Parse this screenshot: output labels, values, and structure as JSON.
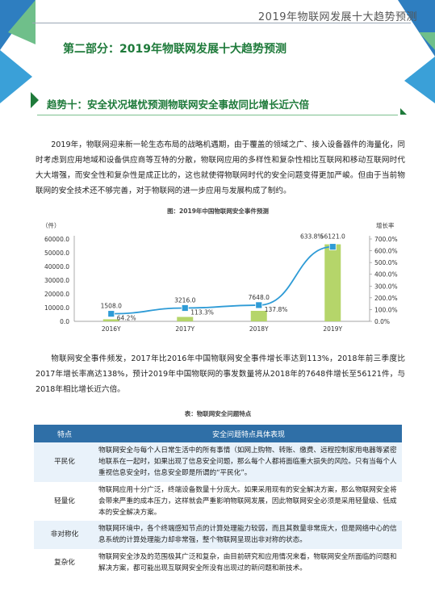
{
  "header": {
    "title": "2019年物联网发展十大趋势预测"
  },
  "section": {
    "title": "第二部分：2019年物联网发展十大趋势预测"
  },
  "trend": {
    "title": "趋势十：安全状况堪忧预测物联网安全事故同比增长近六倍"
  },
  "paragraph1": "2019年，物联网迎来新一轮生态布局的战略机遇期，由于覆盖的领域之广、接入设备器件的海量化，同时考虑到应用地域和设备供应商等互特的分散，物联网应用的多样性和复杂性相比互联网和移动互联网时代大大增强，而安全性和复杂性是成正比的，这也就使得物联网时代的安全问题变得更加严峻。但由于当前物联网的安全技术还不够完善，对于物联网的进一步应用与发展构成了制约。",
  "chart_caption": "图：2019年中国物联网安全事件预测",
  "paragraph2": "物联网安全事件频发，2017年比2016年中国物联网安全事件增长率达到113%，2018年前三季度比2017年增长率高达138%，预计2019年中国物联网的事发数量将从2018年的7648件增长至56121件，与2018年相比增长近六倍。",
  "table_caption": "表：物联网安全问题特点",
  "table": {
    "headers": [
      "特点",
      "安全问题特点具体表现"
    ],
    "rows": [
      {
        "feature": "平民化",
        "desc": "物联网安全与每个人日常生活中的所有事情（如网上购物、转账、缴费、远程控制家用电器等紧密地联系在一起时，如果出现了信息安全问题，那么每个人都将面临重大损失的风险。只有当每个人重视信息安全时，信息安全即是所谓的“平民化”。"
      },
      {
        "feature": "轻量化",
        "desc": "物联网应用十分广泛，终端设备数量十分庞大。如果采用现有的安全解决方案，那么物联网安全将会带来严重的成本压力，这样就会严重影响物联网发展，因此物联网安全必须是采用轻量级、低成本的安全解决方案。"
      },
      {
        "feature": "非对称化",
        "desc": "物联网环境中，各个终端感知节点的计算处理能力较弱，而且其数量非常庞大，但是网络中心的信息系统的计算处理能力却非常强，整个物联网呈现出非对称的状态。"
      },
      {
        "feature": "复杂化",
        "desc": "物联网安全涉及的范围极其广泛和复杂，由目前研究和应用情况来看，物联网安全所面临的问题和解决方案，都可能出现互联网安全所没有出现过的新问题和新技术。"
      }
    ]
  },
  "chart_data": {
    "type": "bar",
    "categories": [
      "2016Y",
      "2017Y",
      "2018Y",
      "2019Y"
    ],
    "series": [
      {
        "values": [
          1508,
          3216,
          7648,
          56121
        ],
        "labels": [
          "1508.0",
          "3216.0",
          "7648.0",
          "56121.0"
        ],
        "color": "#b5d56a"
      },
      {
        "type": "line",
        "axis": "right",
        "values": [
          64.2,
          113.3,
          137.8,
          633.8
        ],
        "labels": [
          "64.2%",
          "113.3%",
          "137.8%",
          "633.8%"
        ],
        "color": "#2e9bd6"
      }
    ],
    "left_unit": "（件）",
    "right_unit": "增长率",
    "ylim_left": [
      0,
      60000
    ],
    "ylim_right": [
      0,
      700
    ],
    "left_ticks": [
      "0.0",
      "10000.0",
      "20000.0",
      "30000.0",
      "40000.0",
      "50000.0",
      "60000.0"
    ],
    "right_ticks": [
      "0.0%",
      "100.0%",
      "200.0%",
      "300.0%",
      "400.0%",
      "500.0%",
      "600.0%",
      "700.0%"
    ]
  }
}
